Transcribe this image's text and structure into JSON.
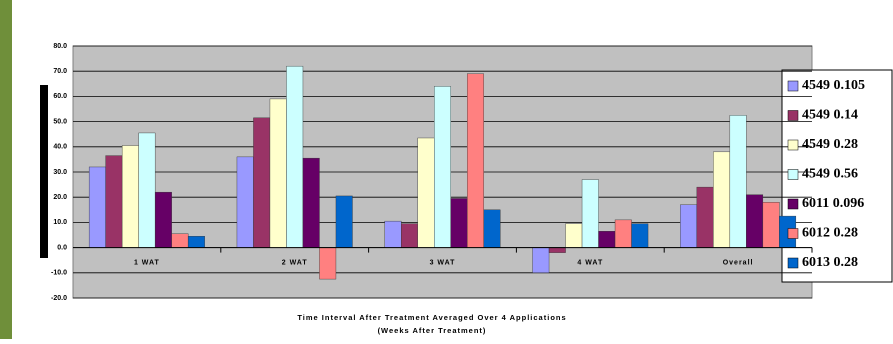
{
  "chart_data": {
    "type": "bar",
    "x_label": "Time Interval After Treatment Averaged Over 4 Applications",
    "x_label_sub": "(Weeks After Treatment)",
    "categories": [
      "1 WAT",
      "2 WAT",
      "3 WAT",
      "4 WAT",
      "Overall"
    ],
    "series": [
      {
        "name": "4549 0.105",
        "color": "#9999ff",
        "values": [
          32,
          36,
          10.5,
          -10,
          17
        ]
      },
      {
        "name": "4549 0.14",
        "color": "#993366",
        "values": [
          36.5,
          51.5,
          9.5,
          -2,
          24
        ]
      },
      {
        "name": "4549 0.28",
        "color": "#ffffcc",
        "values": [
          40.5,
          59,
          43.5,
          9.5,
          38
        ]
      },
      {
        "name": "4549 0.56",
        "color": "#ccffff",
        "values": [
          45.5,
          72,
          64,
          27,
          52.5
        ]
      },
      {
        "name": "6011 0.096",
        "color": "#660066",
        "values": [
          22,
          35.5,
          19.5,
          6.5,
          21
        ]
      },
      {
        "name": "6012 0.28",
        "color": "#ff8080",
        "values": [
          5.5,
          -12.5,
          69,
          11,
          18
        ]
      },
      {
        "name": "6013 0.28",
        "color": "#0066cc",
        "values": [
          4.5,
          20.5,
          15,
          9.5,
          12.5
        ]
      }
    ],
    "ylim": [
      -20,
      80
    ],
    "yticks": [
      {
        "value": -20,
        "label": "-20.0"
      },
      {
        "value": -10,
        "label": "-10.0"
      },
      {
        "value": 0,
        "label": "0.0"
      },
      {
        "value": 10,
        "label": "10.0"
      },
      {
        "value": 20,
        "label": "20.0"
      },
      {
        "value": 30,
        "label": "30.0"
      },
      {
        "value": 40,
        "label": "40.0"
      },
      {
        "value": 50,
        "label": "50.0"
      },
      {
        "value": 60,
        "label": "60.0"
      },
      {
        "value": 70,
        "label": "70.0"
      },
      {
        "value": 80,
        "label": "80.0"
      }
    ],
    "grid": true,
    "legend": "right"
  }
}
